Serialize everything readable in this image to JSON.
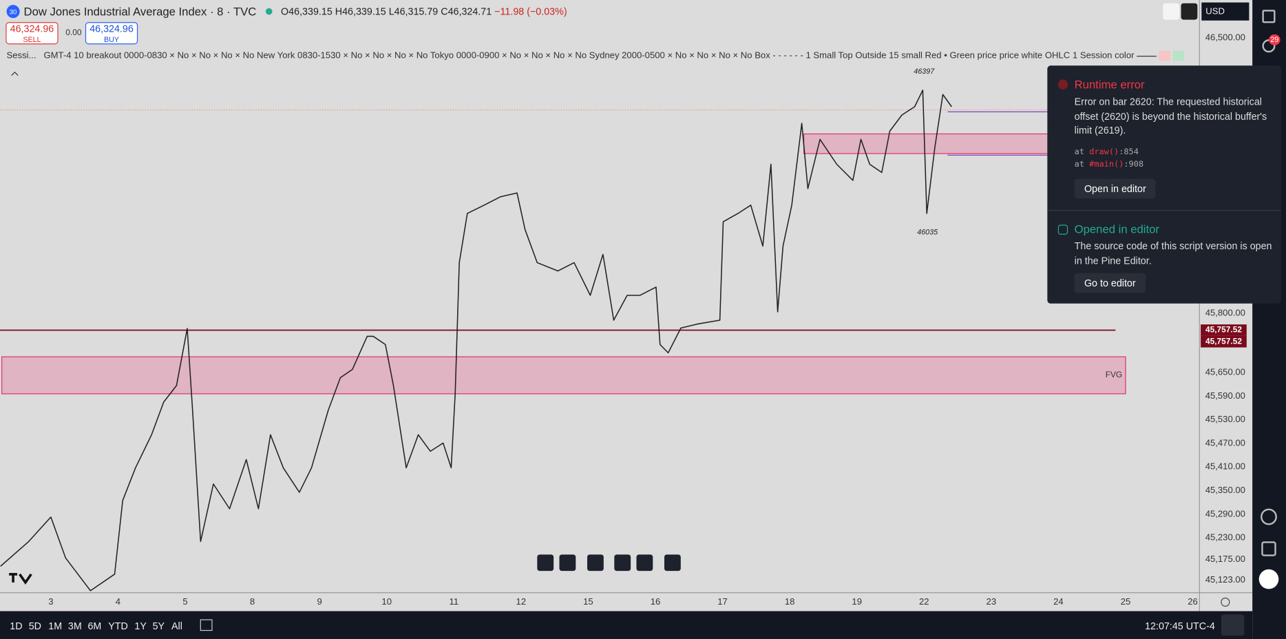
{
  "header": {
    "badge": "30",
    "symbol": "Dow Jones Industrial Average Index · 8 · TVC",
    "ohlc": [
      {
        "key": "O",
        "value": "46,339.15"
      },
      {
        "key": "H",
        "value": "46,339.15"
      },
      {
        "key": "L",
        "value": "46,315.79"
      },
      {
        "key": "C",
        "value": "46,324.71"
      }
    ],
    "change": "−11.98 (−0.03%)"
  },
  "trade": {
    "sell_price": "46,324.96",
    "sell": "SELL",
    "spread": "0.00",
    "buy_price": "46,324.96",
    "buy": "BUY"
  },
  "indicator": {
    "name": "Sessi...",
    "settings": "GMT-4 10 breakout 0000-0830 × No × No × No × No New York 0830-1530 × No × No × No × No Tokyo 0000-0900 × No × No × No × No Sydney 2000-0500 × No × No × No × No Box - - - - - - 1 Small Top Outside 15 small Red • Green price price white OHLC 1 Session color"
  },
  "currency": "USD",
  "notifications": "29",
  "chart_data": {
    "type": "line",
    "color": "#222222",
    "x": [
      -0.75,
      -0.33,
      0,
      0.22,
      0.59,
      0.95,
      1.07,
      1.26,
      1.5,
      1.68,
      1.87,
      2.03,
      2.11,
      2.23,
      2.42,
      2.66,
      2.91,
      3.09,
      3.27,
      3.46,
      3.7,
      3.88,
      4.13,
      4.31,
      4.49,
      4.71,
      4.8,
      4.98,
      5.1,
      5.29,
      5.47,
      5.65,
      5.84,
      5.96,
      6.02,
      6.08,
      6.2,
      6.45,
      6.69,
      6.94,
      7.06,
      7.24,
      7.55,
      7.79,
      8.03,
      8.22,
      8.38,
      8.58,
      8.77,
      9.01,
      9.07,
      9.19,
      9.38,
      9.62,
      9.96,
      10.01,
      10.23,
      10.42,
      10.6,
      10.72,
      10.82,
      10.9,
      11.03,
      11.18,
      11.27,
      11.45,
      11.7,
      11.94,
      12.06,
      12.19,
      12.37,
      12.49,
      12.67,
      12.86,
      12.98,
      13.04,
      13.16,
      13.28,
      13.41
    ],
    "values": [
      45158,
      45221,
      45283,
      45179,
      45096,
      45138,
      45325,
      45408,
      45492,
      45575,
      45617,
      45762,
      45554,
      45221,
      45367,
      45304,
      45429,
      45304,
      45492,
      45408,
      45346,
      45408,
      45554,
      45637,
      45658,
      45742,
      45742,
      45721,
      45617,
      45408,
      45492,
      45450,
      45471,
      45408,
      45596,
      45929,
      46054,
      46075,
      46096,
      46106,
      46013,
      45929,
      45908,
      45929,
      45846,
      45950,
      45783,
      45846,
      45846,
      45867,
      45721,
      45700,
      45763,
      45773,
      45783,
      46033,
      46054,
      46075,
      45971,
      46179,
      45804,
      45971,
      46075,
      46283,
      46117,
      46242,
      46179,
      46138,
      46242,
      46179,
      46158,
      46263,
      46304,
      46325,
      46367,
      46054,
      46221,
      46356,
      46325
    ],
    "xlim": [
      -0.757,
      17.094
    ],
    "ylim": [
      45092,
      46596
    ],
    "grid": false,
    "xticks": [
      {
        "value": 0,
        "label": "3"
      },
      {
        "value": 1,
        "label": "4"
      },
      {
        "value": 2,
        "label": "5"
      },
      {
        "value": 3,
        "label": "8"
      },
      {
        "value": 4,
        "label": "9"
      },
      {
        "value": 5,
        "label": "10"
      },
      {
        "value": 6,
        "label": "11"
      },
      {
        "value": 7,
        "label": "12"
      },
      {
        "value": 8,
        "label": "15"
      },
      {
        "value": 9,
        "label": "16"
      },
      {
        "value": 10,
        "label": "17"
      },
      {
        "value": 11,
        "label": "18"
      },
      {
        "value": 12,
        "label": "19"
      },
      {
        "value": 13,
        "label": "22"
      },
      {
        "value": 14,
        "label": "23"
      },
      {
        "value": 15,
        "label": "24"
      },
      {
        "value": 16,
        "label": "25"
      },
      {
        "value": 17,
        "label": "26"
      }
    ],
    "yticks": [
      {
        "value": 46500,
        "label": "46,500.00"
      },
      {
        "value": 45800,
        "label": "45,800.00"
      },
      {
        "value": 45650,
        "label": "45,650.00"
      },
      {
        "value": 45590,
        "label": "45,590.00"
      },
      {
        "value": 45530,
        "label": "45,530.00"
      },
      {
        "value": 45470,
        "label": "45,470.00"
      },
      {
        "value": 45410,
        "label": "45,410.00"
      },
      {
        "value": 45350,
        "label": "45,350.00"
      },
      {
        "value": 45290,
        "label": "45,290.00"
      },
      {
        "value": 45230,
        "label": "45,230.00"
      },
      {
        "value": 45175,
        "label": "45,175.00"
      },
      {
        "value": 45123,
        "label": "45,123.00"
      }
    ],
    "price_line": {
      "value": 45757.52,
      "label": "45,757.52",
      "start": -0.757,
      "end": 15.85,
      "color": "#7a0a1c"
    },
    "zones": [
      {
        "top": 45690,
        "bottom": 45596,
        "start": -0.73,
        "end": 16.0,
        "label": "FVG",
        "color": "#e0b4c2",
        "border": "#e0306a"
      },
      {
        "top": 46256,
        "bottom": 46206,
        "start": 11.21,
        "end": 14.9,
        "color": "#e0b4c2",
        "border": "#e0306a"
      }
    ],
    "levels": [
      {
        "value": 46312,
        "start": 13.35,
        "end": 17.094,
        "color": "#7b2fbf",
        "style": "solid"
      },
      {
        "value": 46202,
        "start": 13.35,
        "end": 17.094,
        "color": "#7b2fbf",
        "style": "solid"
      },
      {
        "value": 46317,
        "start": -0.757,
        "end": 17.094,
        "color": "#e0886a",
        "style": "dotted"
      }
    ],
    "annotations": [
      {
        "x": 13.0,
        "value": 46397,
        "position": "above"
      },
      {
        "x": 13.05,
        "value": 46035,
        "position": "below"
      }
    ]
  },
  "timeframes": [
    "1D",
    "5D",
    "1M",
    "3M",
    "6M",
    "YTD",
    "1Y",
    "5Y",
    "All"
  ],
  "clock": "12:07:45 UTC-4",
  "error_panel": {
    "title": "Runtime error",
    "message": "Error on bar 2620: The requested historical offset (2620) is beyond the historical buffer's limit (2619).",
    "trace": [
      {
        "prefix": "at ",
        "fn": "draw()",
        "line": ":854"
      },
      {
        "prefix": "at ",
        "fn": "#main()",
        "line": ":908"
      }
    ],
    "button": "Open in editor",
    "info_title": "Opened in editor",
    "info_message": "The source code of this script version is open in the Pine Editor.",
    "info_button": "Go to editor"
  }
}
